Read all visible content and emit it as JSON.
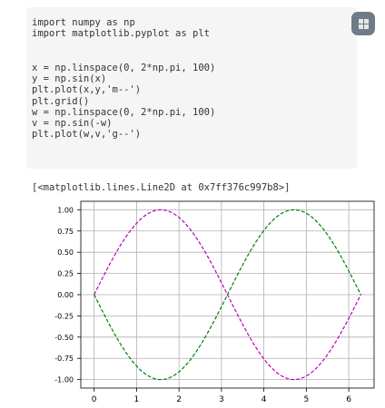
{
  "cell1": {
    "line1": "import numpy as np",
    "line2": "import matplotlib.pyplot as plt"
  },
  "cell2": {
    "lines": [
      "x = np.linspace(0, 2*np.pi, 100)",
      "y = np.sin(x)",
      "plt.plot(x,y,'m--')",
      "plt.grid()",
      "w = np.linspace(0, 2*np.pi, 100)",
      "v = np.sin(-w)",
      "plt.plot(w,v,'g--')"
    ]
  },
  "output_text": "[<matplotlib.lines.Line2D at 0x7ff376c997b8>]",
  "run_button": {
    "icon": "grid-icon"
  },
  "chart_data": {
    "type": "line",
    "x_ticks": [
      "0",
      "1",
      "2",
      "3",
      "4",
      "5",
      "6"
    ],
    "y_ticks": [
      "1.00",
      "0.75",
      "0.50",
      "0.25",
      "0.00",
      "-0.25",
      "-0.50",
      "-0.75",
      "-1.00"
    ],
    "xlim": [
      -0.314,
      6.597
    ],
    "ylim": [
      -1.1,
      1.1
    ],
    "grid": true,
    "series": [
      {
        "expr": "sin(x)",
        "x_range": [
          0,
          6.2832
        ],
        "points": 100,
        "color": "#bf00bf",
        "style": "dashed"
      },
      {
        "expr": "sin(-x)",
        "x_range": [
          0,
          6.2832
        ],
        "points": 100,
        "color": "#008000",
        "style": "dashed"
      }
    ]
  }
}
